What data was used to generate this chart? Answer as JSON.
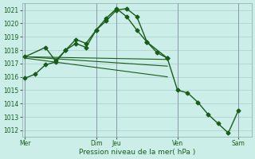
{
  "bg_color": "#cceee8",
  "grid_color": "#aacccc",
  "line_color": "#1a5c1a",
  "xlabel": "Pression niveau de la mer( hPa )",
  "ylim": [
    1011.5,
    1021.5
  ],
  "yticks": [
    1012,
    1013,
    1014,
    1015,
    1016,
    1017,
    1018,
    1019,
    1020,
    1021
  ],
  "xlim": [
    -0.3,
    22.3
  ],
  "xtick_labels": [
    "Mer",
    "Dim",
    "Jeu",
    "Ven",
    "Sam"
  ],
  "xtick_positions": [
    0,
    7,
    9,
    15,
    21
  ],
  "vlines": [
    0,
    7,
    9,
    15,
    21
  ],
  "series1": {
    "x": [
      0,
      1,
      2,
      3,
      4,
      5,
      6,
      7,
      8,
      9,
      10,
      11,
      12,
      13,
      14,
      15,
      16,
      17,
      18,
      19,
      20,
      21
    ],
    "y": [
      1015.9,
      1016.2,
      1016.9,
      1017.1,
      1018.0,
      1018.8,
      1018.5,
      1019.5,
      1020.2,
      1021.0,
      1021.1,
      1020.5,
      1018.6,
      1017.8,
      1017.4,
      1015.0,
      1014.8,
      1014.1,
      1013.2,
      1012.5,
      1011.8,
      1013.5
    ]
  },
  "series2": {
    "x": [
      0,
      2,
      3,
      4,
      5,
      6,
      7,
      8,
      9,
      10,
      11,
      12,
      14
    ],
    "y": [
      1017.5,
      1018.2,
      1017.2,
      1018.0,
      1018.5,
      1018.2,
      1019.5,
      1020.4,
      1021.1,
      1020.5,
      1019.5,
      1018.6,
      1017.4
    ]
  },
  "trend1": {
    "x": [
      0,
      14
    ],
    "y": [
      1017.5,
      1017.3
    ]
  },
  "trend2": {
    "x": [
      0,
      14
    ],
    "y": [
      1017.5,
      1016.8
    ]
  },
  "trend3": {
    "x": [
      0,
      14
    ],
    "y": [
      1017.4,
      1016.0
    ]
  }
}
